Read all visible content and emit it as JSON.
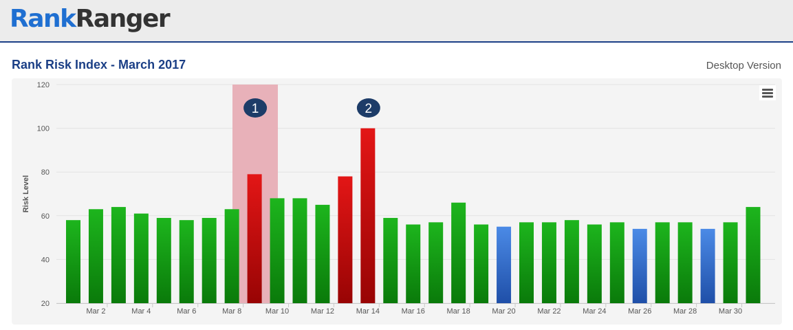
{
  "header": {
    "logo_part1": "Rank",
    "logo_part2": "Ranger"
  },
  "page": {
    "title": "Rank Risk Index - March 2017",
    "version_label": "Desktop Version"
  },
  "colors": {
    "green": "#1aa81a",
    "red": "#d01414",
    "blue": "#3f7fd9",
    "highlight": "#e8b1b9",
    "marker": "#1d3c68"
  },
  "chart_data": {
    "type": "bar",
    "title": "Rank Risk Index - March 2017",
    "xlabel": "",
    "ylabel": "Risk Level",
    "ylim": [
      20,
      120
    ],
    "yticks": [
      20,
      40,
      60,
      80,
      100,
      120
    ],
    "grid": true,
    "categories": [
      "Mar 1",
      "Mar 2",
      "Mar 3",
      "Mar 4",
      "Mar 5",
      "Mar 6",
      "Mar 7",
      "Mar 8",
      "Mar 9",
      "Mar 10",
      "Mar 11",
      "Mar 12",
      "Mar 13",
      "Mar 14",
      "Mar 15",
      "Mar 16",
      "Mar 17",
      "Mar 18",
      "Mar 19",
      "Mar 20",
      "Mar 21",
      "Mar 22",
      "Mar 23",
      "Mar 24",
      "Mar 25",
      "Mar 26",
      "Mar 27",
      "Mar 28",
      "Mar 29",
      "Mar 30",
      "Mar 31"
    ],
    "values": [
      58,
      63,
      64,
      61,
      59,
      58,
      59,
      63,
      79,
      68,
      68,
      65,
      78,
      100,
      59,
      56,
      57,
      66,
      56,
      55,
      57,
      57,
      58,
      56,
      57,
      54,
      57,
      57,
      54,
      57,
      64
    ],
    "bar_colors": [
      "green",
      "green",
      "green",
      "green",
      "green",
      "green",
      "green",
      "green",
      "red",
      "green",
      "green",
      "green",
      "red",
      "red",
      "green",
      "green",
      "green",
      "green",
      "green",
      "blue",
      "green",
      "green",
      "green",
      "green",
      "green",
      "blue",
      "green",
      "green",
      "blue",
      "green",
      "green"
    ],
    "tick_labels": [
      "Mar 2",
      "Mar 4",
      "Mar 6",
      "Mar 8",
      "Mar 10",
      "Mar 12",
      "Mar 14",
      "Mar 16",
      "Mar 18",
      "Mar 20",
      "Mar 22",
      "Mar 24",
      "Mar 26",
      "Mar 28",
      "Mar 30"
    ],
    "highlight_band": {
      "from": "Mar 9",
      "to": "Mar 10"
    },
    "markers": [
      {
        "label": "1",
        "category": "Mar 9"
      },
      {
        "label": "2",
        "category": "Mar 14"
      }
    ]
  }
}
